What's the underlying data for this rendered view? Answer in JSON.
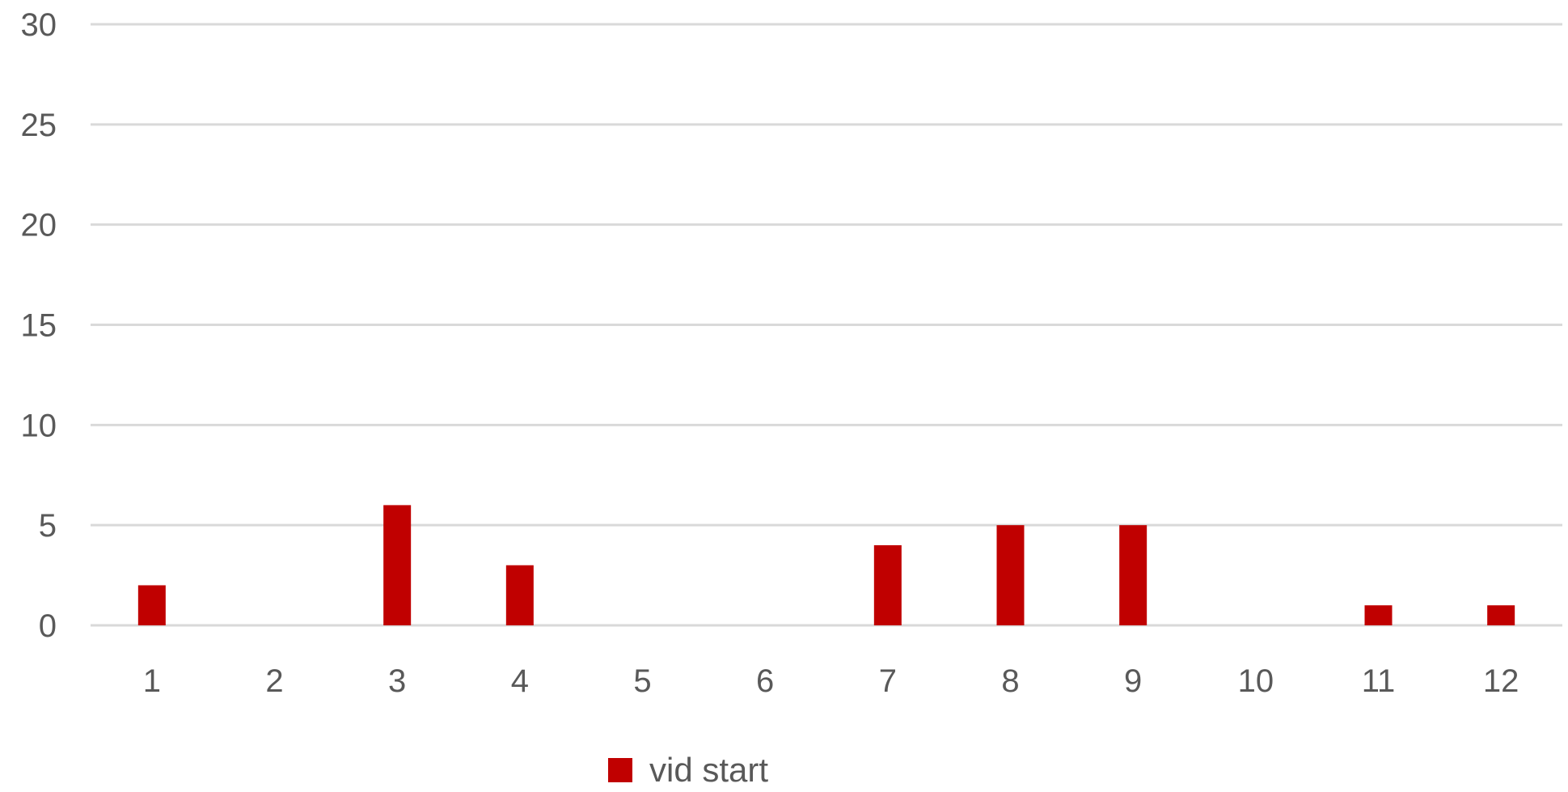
{
  "chart_data": {
    "type": "bar",
    "categories": [
      "1",
      "2",
      "3",
      "4",
      "5",
      "6",
      "7",
      "8",
      "9",
      "10",
      "11",
      "12"
    ],
    "series": [
      {
        "name": "vid start",
        "values": [
          2,
          0,
          6,
          3,
          0,
          0,
          4,
          5,
          5,
          0,
          1,
          1
        ]
      }
    ],
    "y_ticks": [
      "0",
      "5",
      "10",
      "15",
      "20",
      "25",
      "30"
    ],
    "ylim": [
      0,
      30
    ],
    "grid": true,
    "legend_position": "bottom",
    "colors": {
      "bar": "#c00000",
      "grid": "#d9d9d9",
      "text": "#595959"
    }
  }
}
